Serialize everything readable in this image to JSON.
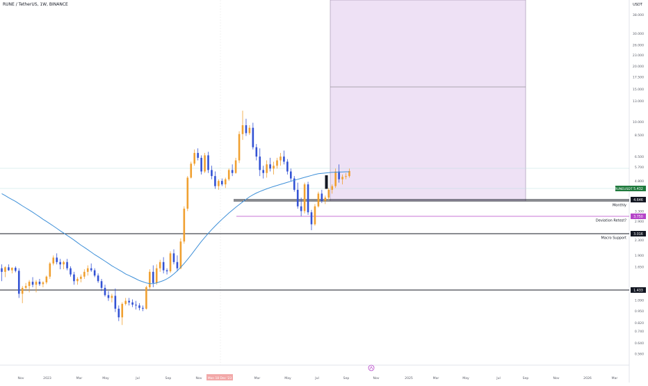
{
  "header": {
    "title": "RUNE / TetherUS, 1W, BINANCE"
  },
  "chart_data": {
    "type": "candlestick",
    "symbol_badge": "RUNEUSDT",
    "last_price": "5.432",
    "currency_label": "USDT",
    "y_scale": "log",
    "ylim": [
      0.55,
      60
    ],
    "y_ticks": [
      "56.000",
      "46.000",
      "38.000",
      "30.000",
      "26.000",
      "23.000",
      "20.000",
      "17.500",
      "15.000",
      "13.000",
      "10.000",
      "8.500",
      "6.500",
      "5.700",
      "4.800",
      "4.300",
      "3.300",
      "2.900",
      "2.300",
      "1.900",
      "1.650",
      "1.250",
      "1.090",
      "0.950",
      "0.820",
      "0.740",
      "0.640",
      "0.560"
    ],
    "x_ticks": [
      "Nov",
      "2023",
      "Mar",
      "May",
      "Jul",
      "Sep",
      "Nov",
      "Mar",
      "May",
      "Jul",
      "Sep",
      "Nov",
      "2025",
      "Mar",
      "May",
      "Jul",
      "Sep",
      "Nov",
      "2026",
      "Mar"
    ],
    "x_highlight": "Mon 18 Dec '23",
    "levels": [
      {
        "label": "",
        "price_label": "4.646",
        "value": 4.646,
        "color": "#131722",
        "badge": "#131722"
      },
      {
        "label": "Monthly",
        "price_label": "",
        "value": 4.44,
        "color": "#131722",
        "badge": ""
      },
      {
        "label": "Deviation Retest?",
        "price_label": "3.750",
        "value": 3.75,
        "color": "#b544c8",
        "badge": "#b544c8"
      },
      {
        "label": "Macro Support",
        "price_label": "3.016",
        "value": 3.016,
        "color": "#131722",
        "badge": "#131722"
      },
      {
        "label": "",
        "price_label": "1.433",
        "value": 1.433,
        "color": "#131722",
        "badge": "#131722"
      }
    ],
    "colors": {
      "up": "#f0a030",
      "down": "#3352d4",
      "ma": "#3d8fd8",
      "zone": "#ead9f3"
    }
  }
}
